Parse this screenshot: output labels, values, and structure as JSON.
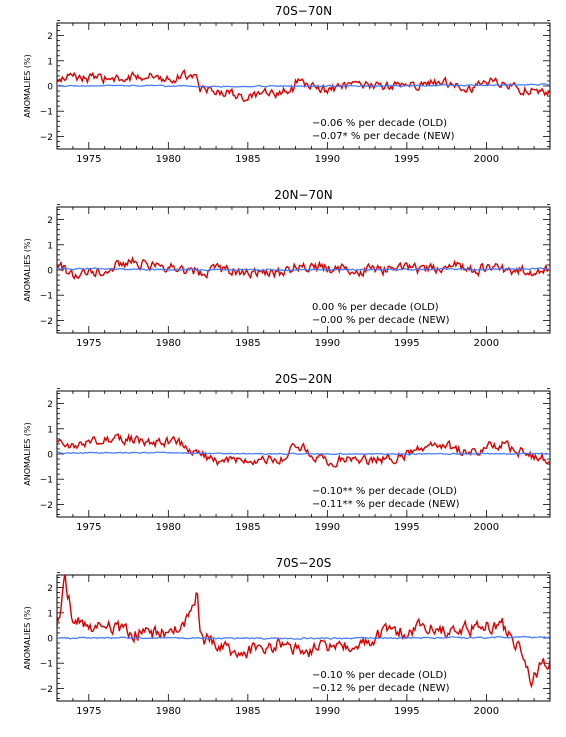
{
  "chart_data": [
    {
      "type": "line",
      "title": "70S−70N",
      "ylabel": "ANOMALIES (%)",
      "xlim": [
        1973,
        2004
      ],
      "ylim": [
        -2.5,
        2.5
      ],
      "xticks": [
        "1975",
        "1980",
        "1985",
        "1990",
        "1995",
        "2000"
      ],
      "yticks": [
        "−2",
        "−1",
        "0",
        "1",
        "2"
      ],
      "annotations": [
        "−0.06 % per decade (OLD)",
        "−0.07* % per decade (NEW)"
      ],
      "series": [
        {
          "color": "#d80000",
          "x": [
            1973.0,
            1974.0,
            1975.0,
            1976.0,
            1977.0,
            1978.0,
            1979.0,
            1980.0,
            1981.0,
            1981.8,
            1982.0,
            1983.0,
            1984.0,
            1985.0,
            1986.0,
            1987.0,
            1987.9,
            1988.0,
            1989.0,
            1990.0,
            1991.0,
            1992.0,
            1993.0,
            1994.0,
            1995.0,
            1996.0,
            1997.0,
            1998.0,
            1999.0,
            2000.0,
            2001.0,
            2002.0,
            2003.0,
            2004.0
          ],
          "y": [
            0.2,
            0.4,
            0.3,
            0.3,
            0.2,
            0.4,
            0.4,
            0.3,
            0.4,
            0.5,
            -0.1,
            -0.2,
            -0.3,
            -0.5,
            -0.3,
            -0.3,
            -0.1,
            0.2,
            0.0,
            -0.2,
            0.0,
            0.0,
            0.0,
            0.0,
            0.1,
            0.0,
            0.2,
            0.1,
            -0.1,
            0.2,
            0.1,
            -0.1,
            -0.2,
            -0.3
          ],
          "noise": 0.28
        },
        {
          "color": "#3c78ff",
          "x": [
            1973.0,
            1978.0,
            1983.0,
            1988.0,
            1993.0,
            1998.0,
            2004.0
          ],
          "y": [
            0.0,
            0.02,
            -0.02,
            0.0,
            0.0,
            0.02,
            0.06
          ],
          "noise": 0.04
        }
      ]
    },
    {
      "type": "line",
      "title": "20N−70N",
      "ylabel": "ANOMALIES (%)",
      "xlim": [
        1973,
        2004
      ],
      "ylim": [
        -2.5,
        2.5
      ],
      "xticks": [
        "1975",
        "1980",
        "1985",
        "1990",
        "1995",
        "2000"
      ],
      "yticks": [
        "−2",
        "−1",
        "0",
        "1",
        "2"
      ],
      "annotations": [
        "0.00 % per decade (OLD)",
        "−0.00 % per decade (NEW)"
      ],
      "series": [
        {
          "color": "#d80000",
          "x": [
            1973.0,
            1974.0,
            1975.0,
            1976.0,
            1977.0,
            1978.0,
            1979.0,
            1980.0,
            1981.0,
            1982.0,
            1983.0,
            1984.0,
            1985.0,
            1986.0,
            1987.0,
            1988.0,
            1989.0,
            1990.0,
            1991.0,
            1992.0,
            1993.0,
            1994.0,
            1995.0,
            1996.0,
            1997.0,
            1998.0,
            1999.0,
            2000.0,
            2001.0,
            2002.0,
            2003.0,
            2004.0
          ],
          "y": [
            0.1,
            -0.1,
            0.0,
            0.0,
            0.2,
            0.3,
            0.2,
            0.1,
            0.0,
            -0.1,
            0.0,
            0.0,
            -0.2,
            0.0,
            -0.1,
            0.1,
            0.2,
            0.0,
            0.0,
            0.0,
            0.1,
            0.0,
            0.2,
            0.0,
            0.0,
            0.2,
            0.1,
            0.0,
            0.0,
            -0.1,
            0.0,
            0.0
          ],
          "noise": 0.35
        },
        {
          "color": "#3c78ff",
          "x": [
            1973.0,
            1980.0,
            1987.0,
            1994.0,
            2004.0
          ],
          "y": [
            0.05,
            0.02,
            0.0,
            0.02,
            0.05
          ],
          "noise": 0.05
        }
      ]
    },
    {
      "type": "line",
      "title": "20S−20N",
      "ylabel": "ANOMALIES (%)",
      "xlim": [
        1973,
        2004
      ],
      "ylim": [
        -2.5,
        2.5
      ],
      "xticks": [
        "1975",
        "1980",
        "1985",
        "1990",
        "1995",
        "2000"
      ],
      "yticks": [
        "−2",
        "−1",
        "0",
        "1",
        "2"
      ],
      "annotations": [
        "−0.10** % per decade (OLD)",
        "−0.11** % per decade (NEW)"
      ],
      "series": [
        {
          "color": "#d80000",
          "x": [
            1973.0,
            1974.0,
            1975.0,
            1976.0,
            1977.0,
            1978.0,
            1979.0,
            1980.0,
            1981.0,
            1982.0,
            1983.0,
            1984.0,
            1985.0,
            1986.0,
            1987.0,
            1988.0,
            1989.0,
            1990.0,
            1991.0,
            1992.0,
            1993.0,
            1994.0,
            1995.0,
            1996.0,
            1997.0,
            1998.0,
            1999.0,
            2000.0,
            2001.0,
            2002.0,
            2003.0,
            2004.0
          ],
          "y": [
            0.4,
            0.3,
            0.5,
            0.5,
            0.6,
            0.6,
            0.4,
            0.5,
            0.4,
            0.0,
            -0.3,
            -0.2,
            -0.4,
            -0.2,
            -0.3,
            0.4,
            0.0,
            -0.3,
            -0.2,
            -0.3,
            -0.2,
            -0.2,
            0.0,
            0.2,
            0.4,
            0.2,
            0.0,
            0.3,
            0.4,
            0.1,
            -0.1,
            -0.2
          ],
          "noise": 0.3
        },
        {
          "color": "#3c78ff",
          "x": [
            1973.0,
            1980.0,
            1987.0,
            1994.0,
            2004.0
          ],
          "y": [
            0.05,
            0.05,
            0.0,
            0.0,
            0.02
          ],
          "noise": 0.04
        }
      ]
    },
    {
      "type": "line",
      "title": "70S−20S",
      "ylabel": "ANOMALIES (%)",
      "xlim": [
        1973,
        2004
      ],
      "ylim": [
        -2.5,
        2.5
      ],
      "xticks": [
        "1975",
        "1980",
        "1985",
        "1990",
        "1995",
        "2000"
      ],
      "yticks": [
        "−2",
        "−1",
        "0",
        "1",
        "2"
      ],
      "annotations": [
        "−0.10 % per decade (OLD)",
        "−0.12 % per decade (NEW)"
      ],
      "series": [
        {
          "color": "#d80000",
          "x": [
            1973.0,
            1973.5,
            1974.0,
            1975.0,
            1976.0,
            1977.0,
            1978.0,
            1979.0,
            1980.0,
            1981.0,
            1981.8,
            1982.0,
            1983.0,
            1984.0,
            1985.0,
            1986.0,
            1987.0,
            1988.0,
            1989.0,
            1990.0,
            1991.0,
            1992.0,
            1993.0,
            1994.0,
            1995.0,
            1996.0,
            1997.0,
            1998.0,
            1999.0,
            2000.0,
            2001.0,
            2002.0,
            2002.8,
            2003.5,
            2004.0
          ],
          "y": [
            0.2,
            2.3,
            0.8,
            0.3,
            0.4,
            0.3,
            0.2,
            0.2,
            0.3,
            0.5,
            1.8,
            0.0,
            -0.2,
            -0.6,
            -0.5,
            -0.4,
            -0.3,
            -0.4,
            -0.5,
            -0.3,
            -0.3,
            -0.1,
            0.0,
            0.3,
            0.3,
            0.5,
            0.4,
            0.3,
            0.4,
            0.5,
            0.5,
            -0.3,
            -1.7,
            -1.0,
            -0.9
          ],
          "noise": 0.45
        },
        {
          "color": "#3c78ff",
          "x": [
            1973.0,
            1980.0,
            1987.0,
            1994.0,
            2004.0
          ],
          "y": [
            0.0,
            0.0,
            -0.02,
            0.0,
            0.03
          ],
          "noise": 0.05
        }
      ]
    }
  ]
}
